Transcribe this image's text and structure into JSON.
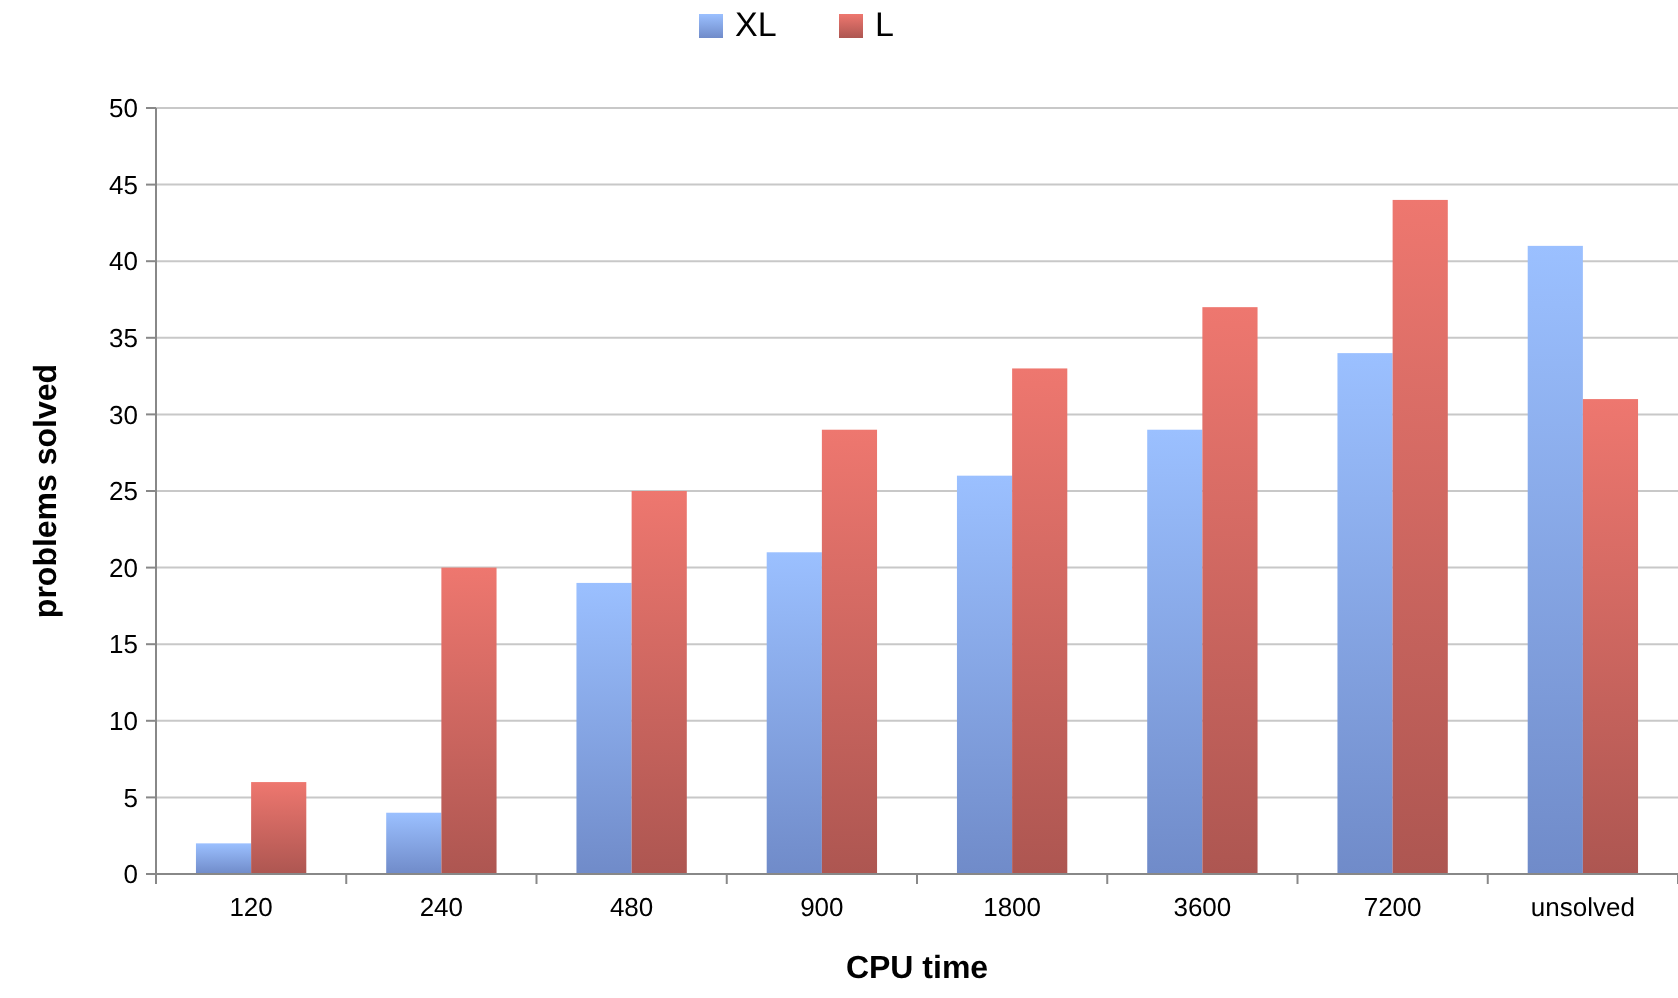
{
  "chart_data": {
    "type": "bar",
    "xlabel": "CPU time",
    "ylabel": "problems solved",
    "categories": [
      "120",
      "240",
      "480",
      "900",
      "1800",
      "3600",
      "7200",
      "unsolved"
    ],
    "series": [
      {
        "name": "XL",
        "color": "#7d9be0",
        "values": [
          2,
          4,
          19,
          21,
          26,
          29,
          34,
          41
        ]
      },
      {
        "name": "L",
        "color": "#c0605a",
        "values": [
          6,
          20,
          25,
          29,
          33,
          37,
          44,
          31
        ]
      }
    ],
    "ylim": [
      0,
      50
    ],
    "yticks": [
      0,
      5,
      10,
      15,
      20,
      25,
      30,
      35,
      40,
      45,
      50
    ],
    "grid": "y",
    "legend": "top"
  }
}
